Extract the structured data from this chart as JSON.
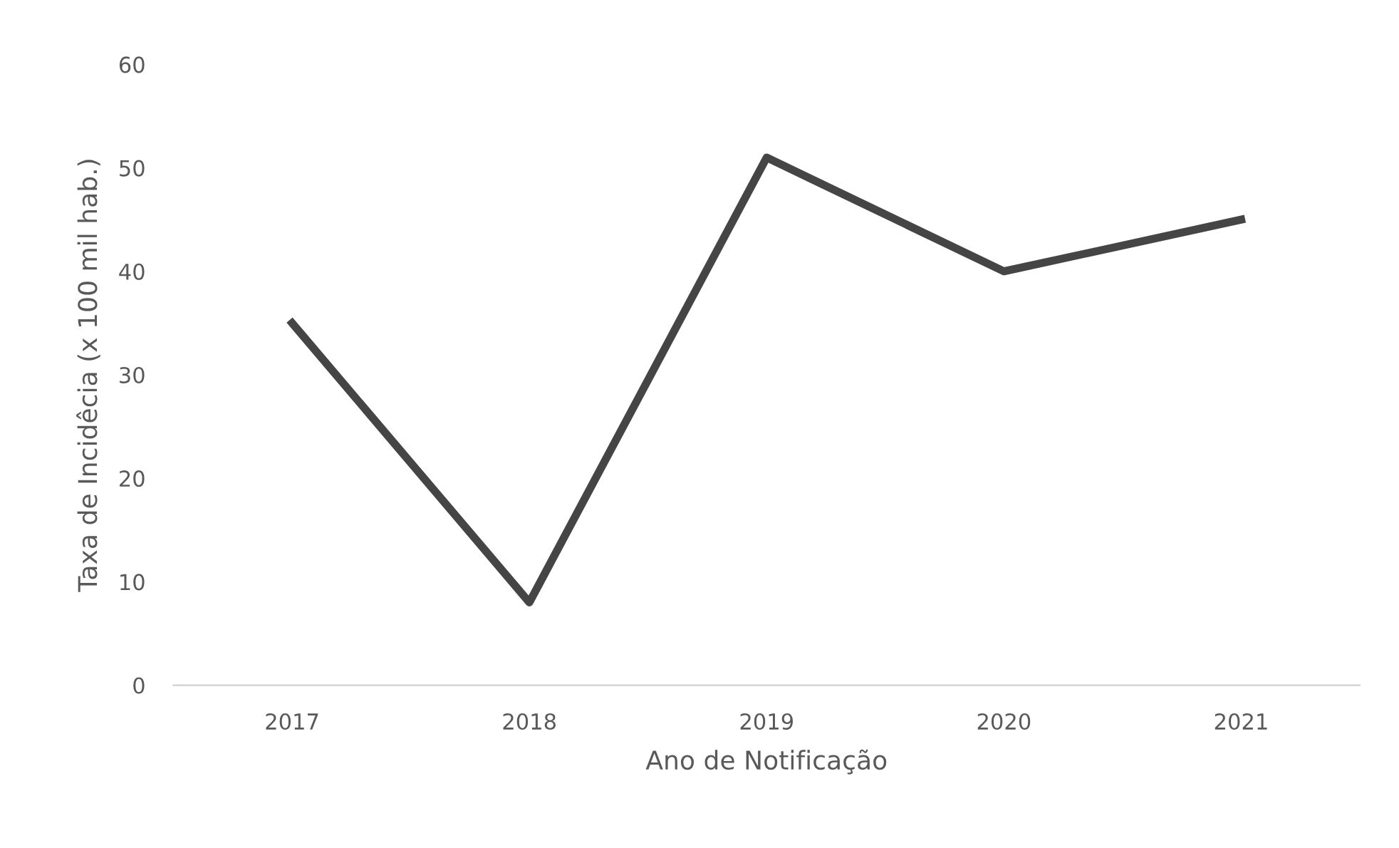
{
  "chart_data": {
    "type": "line",
    "xlabel": "Ano de Notificação",
    "ylabel": "Taxa de Incidêcia (x 100 mil hab.)",
    "categories": [
      "2017",
      "2018",
      "2019",
      "2020",
      "2021"
    ],
    "series": [
      {
        "color": "#454545",
        "values": [
          35,
          8,
          51,
          40,
          45
        ]
      }
    ],
    "ylim": [
      0,
      60
    ],
    "yticks": [
      0,
      10,
      20,
      30,
      40,
      50,
      60
    ],
    "grid": false,
    "legend": false,
    "marker": "none",
    "line_style": "solid"
  }
}
